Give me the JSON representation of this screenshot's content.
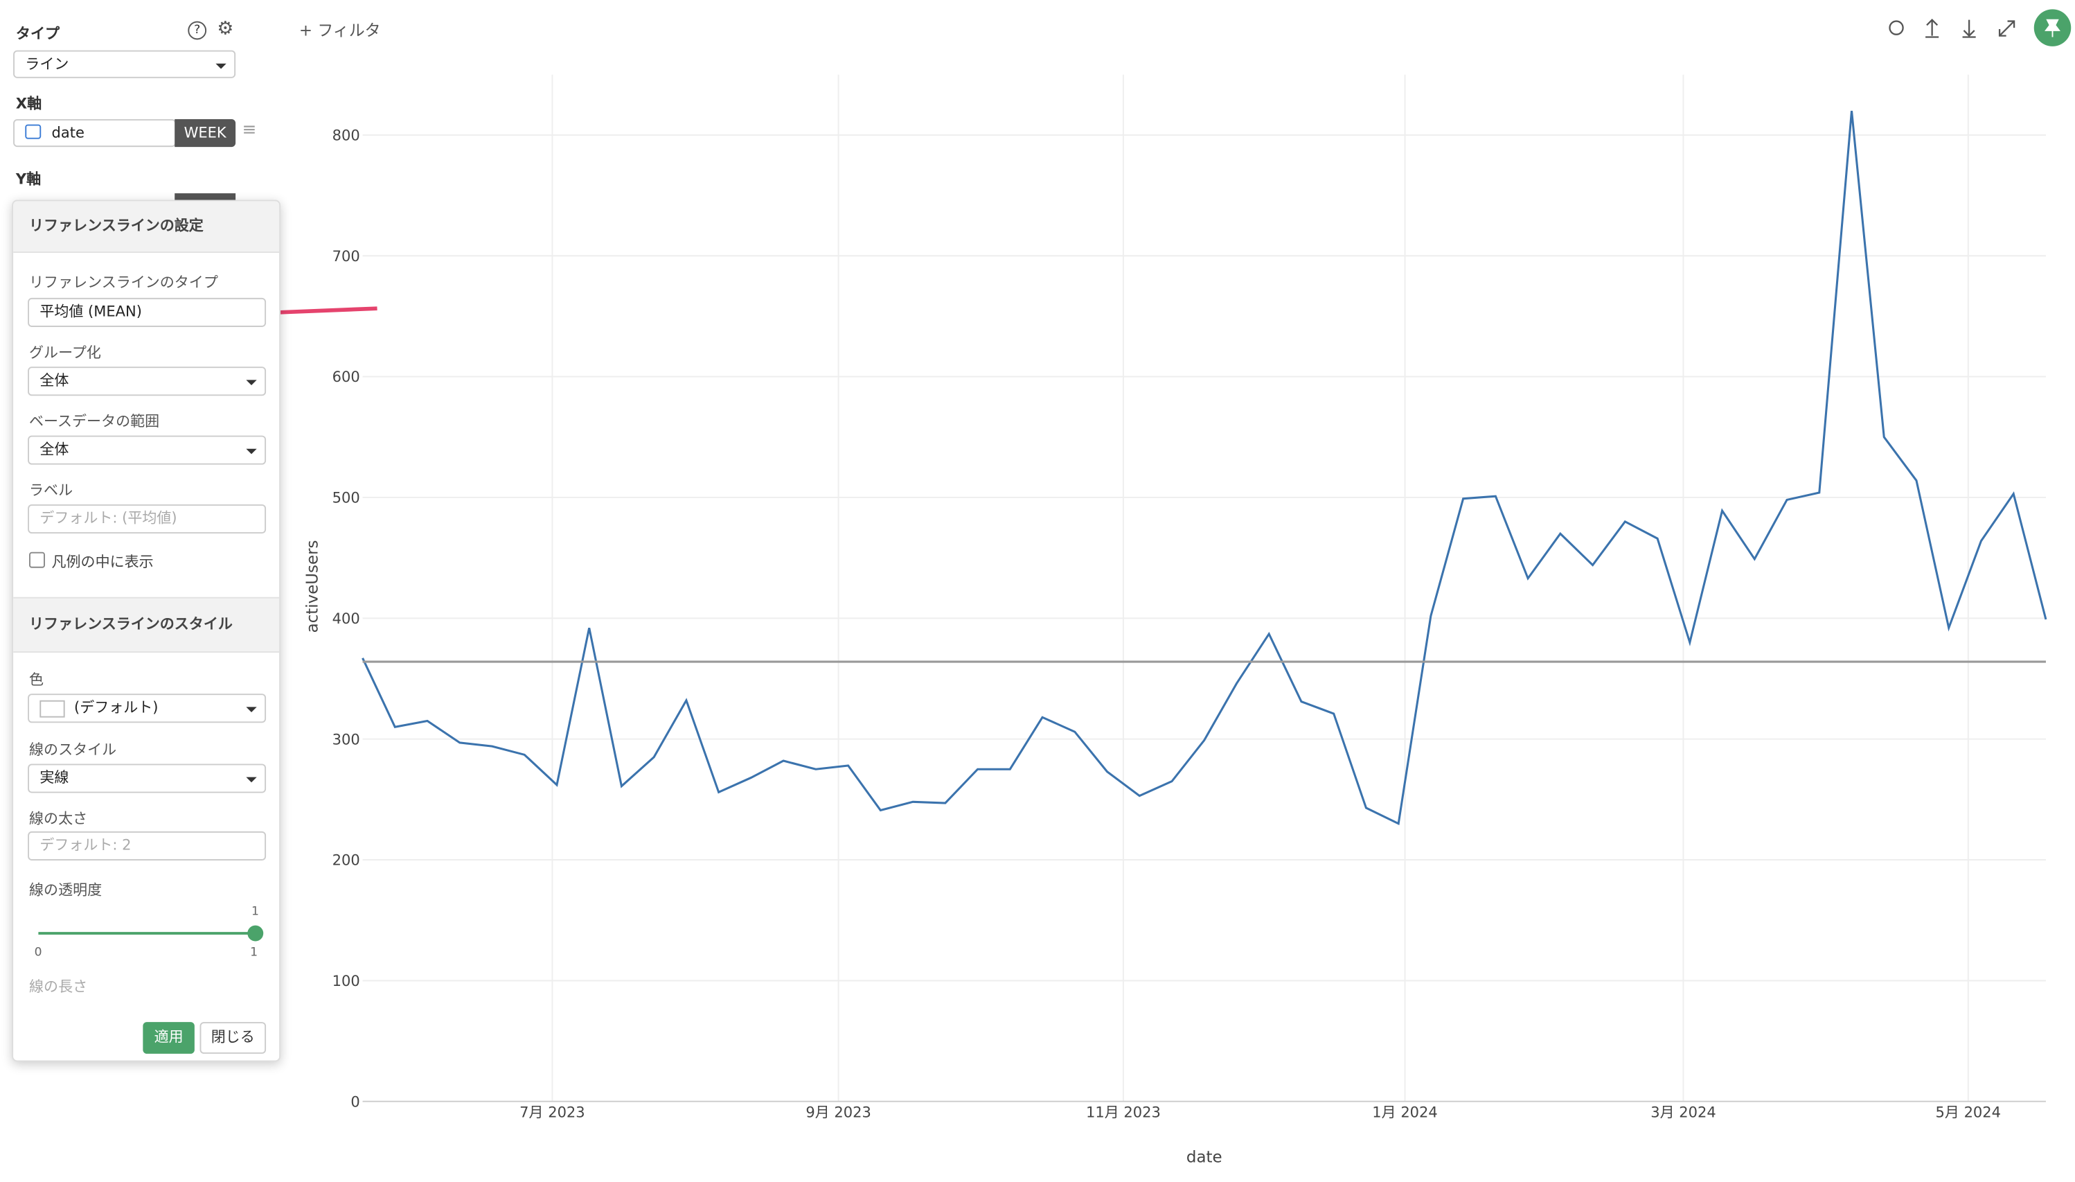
{
  "ui": {
    "filter": "+ フィルタ",
    "type_label": "タイプ",
    "type_value": "ライン",
    "x_label": "X軸",
    "x_field": "date",
    "x_unit": "WEEK",
    "y_label": "Y軸",
    "popup": {
      "title": "リファレンスラインの設定",
      "ref_type_label": "リファレンスラインのタイプ",
      "ref_type_value": "平均値 (MEAN)",
      "group_label": "グループ化",
      "group_value": "全体",
      "range_label": "ベースデータの範囲",
      "range_value": "全体",
      "label_label": "ラベル",
      "label_placeholder": "デフォルト: (平均値)",
      "legend_check": "凡例の中に表示",
      "style_title": "リファレンスラインのスタイル",
      "color_label": "色",
      "color_value": "(デフォルト)",
      "linestyle_label": "線のスタイル",
      "linestyle_value": "実線",
      "width_label": "線の太さ",
      "width_placeholder": "デフォルト: 2",
      "opacity_label": "線の透明度",
      "opacity_value": 1,
      "opacity_min": 0,
      "opacity_max": 1,
      "length_label": "線の長さ",
      "apply": "適用",
      "close": "閉じる"
    }
  },
  "chart_data": {
    "type": "line",
    "x_label": "date",
    "y_label": "activeUsers",
    "series": [
      {
        "name": "activeUsers",
        "color": "#3b73ad",
        "values": [
          367,
          310,
          315,
          297,
          294,
          287,
          262,
          392,
          261,
          285,
          332,
          256,
          268,
          282,
          275,
          278,
          241,
          248,
          247,
          275,
          275,
          318,
          306,
          273,
          253,
          265,
          299,
          346,
          387,
          331,
          321,
          243,
          230,
          402,
          499,
          501,
          433,
          470,
          444,
          480,
          466,
          380,
          489,
          449,
          498,
          504,
          820,
          550,
          514,
          392,
          464,
          503,
          399
        ]
      }
    ],
    "reference_line": {
      "value": 364,
      "color": "#999999"
    },
    "xlim": [
      0,
      52
    ],
    "xticks": [
      {
        "value": 5.86,
        "label": "7月 2023"
      },
      {
        "value": 14.7,
        "label": "9月 2023"
      },
      {
        "value": 23.5,
        "label": "11月 2023"
      },
      {
        "value": 32.2,
        "label": "1月 2024"
      },
      {
        "value": 40.8,
        "label": "3月 2024"
      },
      {
        "value": 49.6,
        "label": "5月 2024"
      }
    ],
    "ylim": [
      0,
      850
    ],
    "yticks": [
      0,
      100,
      200,
      300,
      400,
      500,
      600,
      700,
      800
    ],
    "grid": true
  }
}
